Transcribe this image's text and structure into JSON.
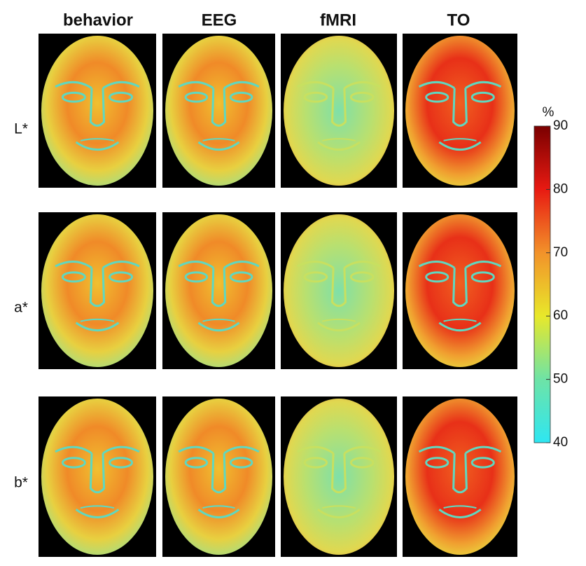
{
  "columns": [
    "behavior",
    "EEG",
    "fMRI",
    "TO"
  ],
  "rows": [
    "L*",
    "a*",
    "b*"
  ],
  "colorbar": {
    "label": "%",
    "lim": [
      40,
      90
    ],
    "ticks": [
      40,
      50,
      60,
      70,
      80,
      90
    ]
  }
}
